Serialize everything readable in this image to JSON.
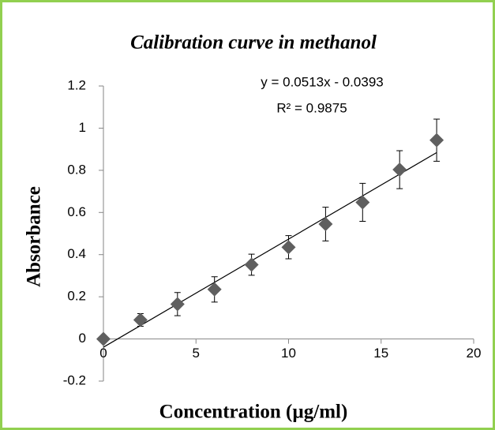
{
  "chart_data": {
    "type": "scatter",
    "title": "Calibration curve in methanol",
    "x_label": "Concentration (µg/ml)",
    "y_label": "Absorbance",
    "series": [
      {
        "color": "#5f5f5f",
        "x": [
          0,
          2,
          4,
          6,
          8,
          10,
          12,
          14,
          16,
          18
        ],
        "values": [
          0,
          0.09,
          0.165,
          0.235,
          0.352,
          0.435,
          0.545,
          0.648,
          0.803,
          0.943
        ],
        "errors": [
          0,
          0.03,
          0.055,
          0.06,
          0.05,
          0.055,
          0.08,
          0.09,
          0.09,
          0.1
        ]
      }
    ],
    "trendline": {
      "slope": 0.0513,
      "intercept": -0.0393,
      "r2": 0.9875,
      "equation_label": "y = 0.0513x - 0.0393",
      "r2_label": "R² = 0.9875"
    },
    "xlim": [
      0,
      20
    ],
    "xticks": [
      0,
      5,
      10,
      15,
      20
    ],
    "ylim": [
      -0.2,
      1.2
    ],
    "yticks": [
      -0.2,
      0,
      0.2,
      0.4,
      0.6,
      0.8,
      1,
      1.2
    ]
  }
}
